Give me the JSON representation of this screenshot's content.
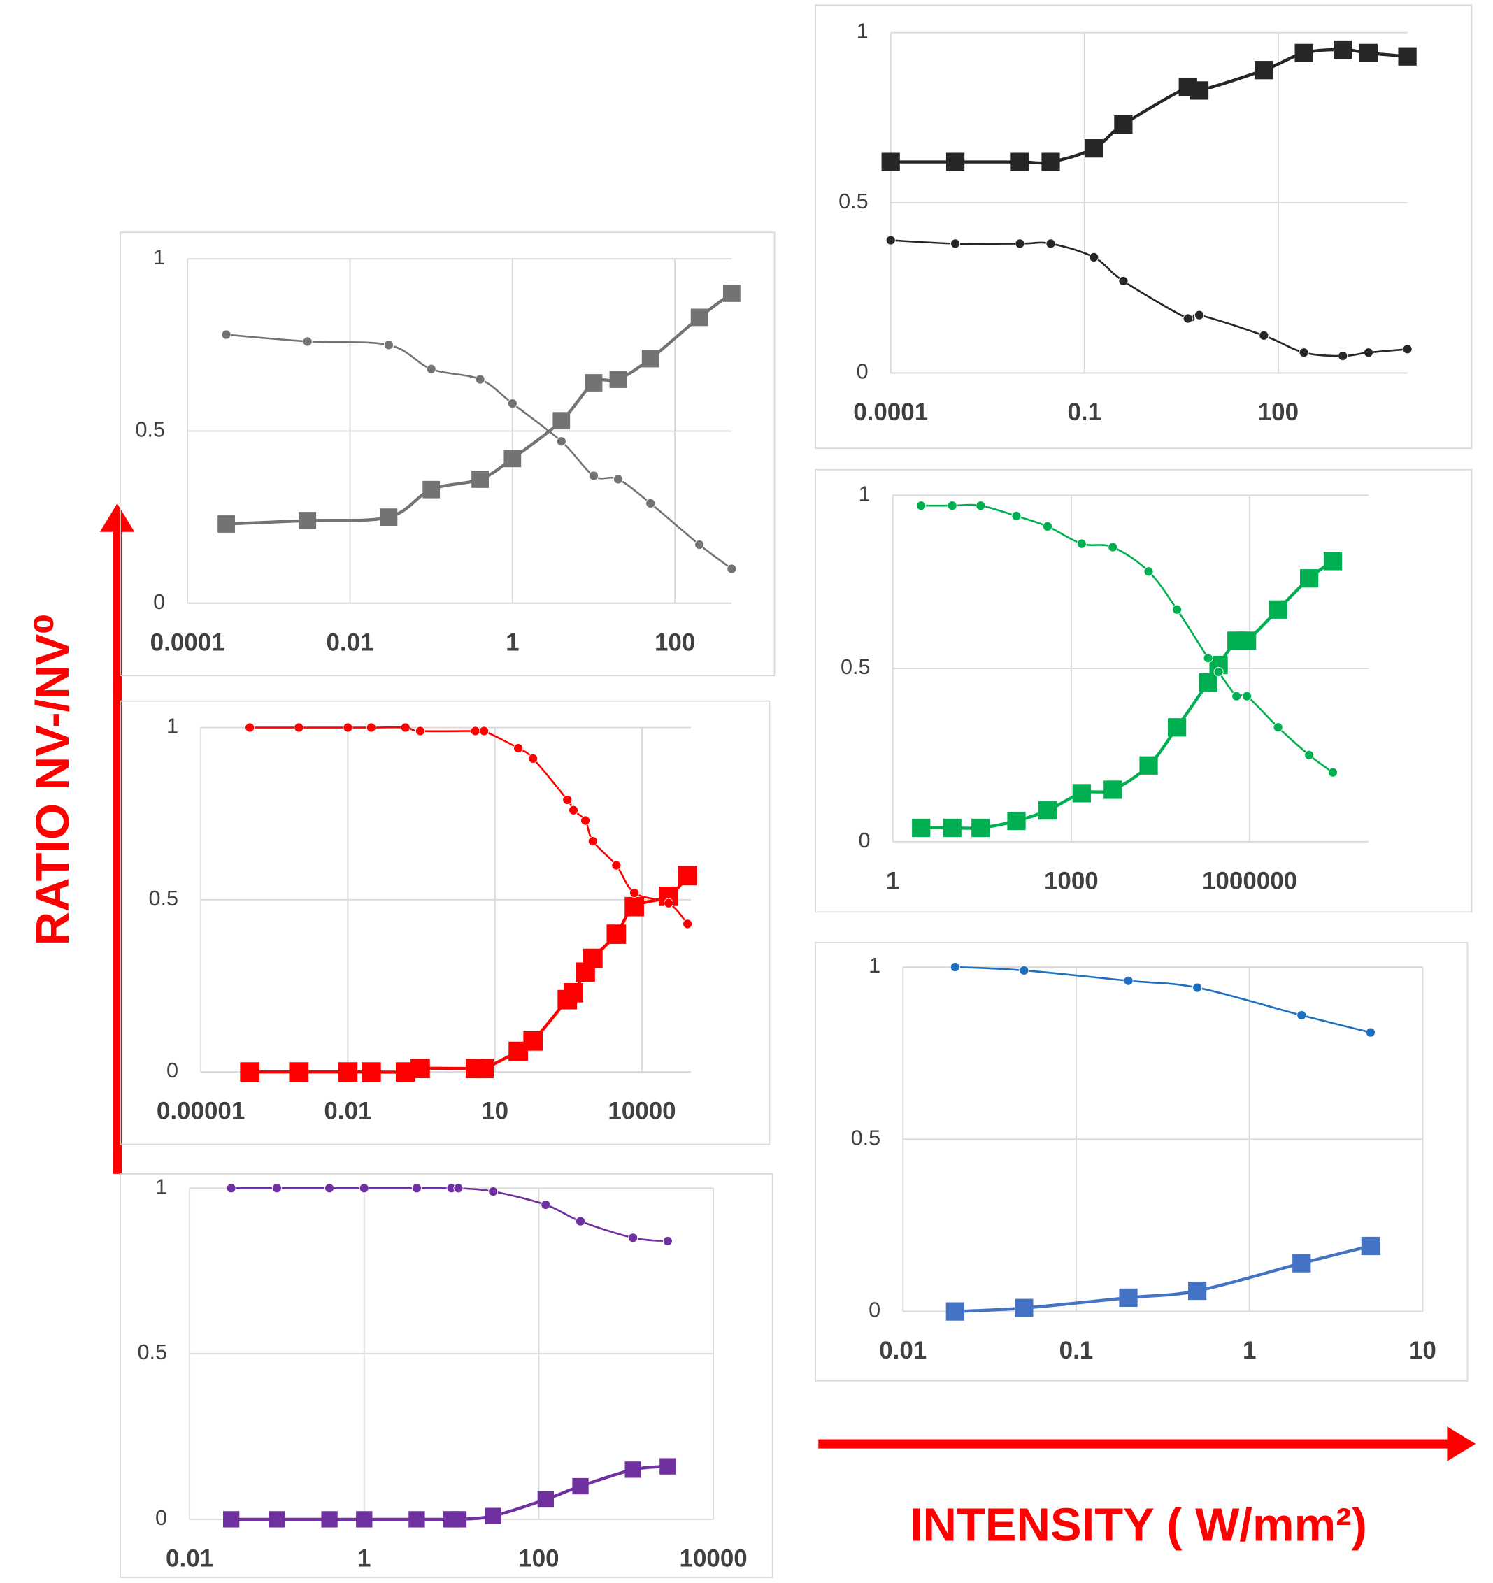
{
  "chart_data": [
    {
      "type": "line",
      "xlog": true,
      "grid": true,
      "xlim": [
        0.0001,
        500
      ],
      "xticks": [
        0.0001,
        0.01,
        1,
        100
      ],
      "ylim": [
        0,
        1
      ],
      "yticks": [
        0,
        0.5,
        1
      ],
      "x": [
        0.0003,
        0.003,
        0.03,
        0.1,
        0.4,
        1,
        4,
        10,
        20,
        50,
        200,
        500
      ],
      "series": [
        {
          "color": "#737373",
          "marker": "square",
          "values": [
            0.23,
            0.24,
            0.25,
            0.33,
            0.36,
            0.42,
            0.53,
            0.64,
            0.65,
            0.71,
            0.83,
            0.9
          ]
        },
        {
          "color": "#737373",
          "marker": "circle",
          "values": [
            0.78,
            0.76,
            0.75,
            0.68,
            0.65,
            0.58,
            0.47,
            0.37,
            0.36,
            0.29,
            0.17,
            0.1
          ]
        }
      ]
    },
    {
      "type": "line",
      "xlog": true,
      "grid": true,
      "xlim": [
        1e-05,
        100000
      ],
      "xticks": [
        1e-05,
        0.01,
        10,
        10000
      ],
      "ylim": [
        0,
        1
      ],
      "yticks": [
        0,
        0.5,
        1
      ],
      "x": [
        0.0001,
        0.001,
        0.01,
        0.03,
        0.15,
        0.3,
        4,
        6,
        30,
        60,
        300,
        400,
        700,
        1000,
        3000,
        7000,
        35000,
        85000
      ],
      "series": [
        {
          "color": "#ff0000",
          "marker": "square",
          "values": [
            0,
            0,
            0,
            0,
            0,
            0.01,
            0.01,
            0.01,
            0.06,
            0.09,
            0.21,
            0.23,
            0.29,
            0.33,
            0.4,
            0.48,
            0.51,
            0.57
          ]
        },
        {
          "color": "#ff0000",
          "marker": "circle",
          "values": [
            1,
            1,
            1,
            1,
            1,
            0.99,
            0.99,
            0.99,
            0.94,
            0.91,
            0.79,
            0.76,
            0.73,
            0.67,
            0.6,
            0.52,
            0.49,
            0.43
          ]
        }
      ]
    },
    {
      "type": "line",
      "xlog": true,
      "grid": true,
      "xlim": [
        0.01,
        10000
      ],
      "xticks": [
        0.01,
        1,
        100,
        10000
      ],
      "ylim": [
        0,
        1
      ],
      "yticks": [
        0,
        0.5,
        1
      ],
      "x": [
        0.03,
        0.1,
        0.4,
        1,
        4,
        10,
        12,
        30,
        120,
        300,
        1200,
        3000
      ],
      "series": [
        {
          "color": "#7030a0",
          "marker": "square",
          "values": [
            0,
            0,
            0,
            0,
            0,
            0,
            0,
            0.01,
            0.06,
            0.1,
            0.15,
            0.16
          ]
        },
        {
          "color": "#7030a0",
          "marker": "circle",
          "values": [
            1,
            1,
            1,
            1,
            1,
            1,
            1,
            0.99,
            0.95,
            0.9,
            0.85,
            0.84
          ]
        }
      ]
    },
    {
      "type": "line",
      "xlog": true,
      "grid": true,
      "xlim": [
        0.0001,
        10000
      ],
      "xticks": [
        0.0001,
        0.1,
        100
      ],
      "ylim": [
        0,
        1
      ],
      "yticks": [
        0,
        0.5,
        1
      ],
      "x": [
        0.0001,
        0.001,
        0.01,
        0.03,
        0.14,
        0.4,
        4,
        6,
        60,
        250,
        1000,
        2500,
        10000
      ],
      "series": [
        {
          "color": "#262626",
          "marker": "square",
          "values": [
            0.62,
            0.62,
            0.62,
            0.62,
            0.66,
            0.73,
            0.84,
            0.83,
            0.89,
            0.94,
            0.95,
            0.94,
            0.93
          ]
        },
        {
          "color": "#262626",
          "marker": "circle",
          "values": [
            0.39,
            0.38,
            0.38,
            0.38,
            0.34,
            0.27,
            0.16,
            0.17,
            0.11,
            0.06,
            0.05,
            0.06,
            0.07
          ]
        }
      ]
    },
    {
      "type": "line",
      "xlog": true,
      "grid": true,
      "xlim": [
        1,
        100000000
      ],
      "xticks": [
        1,
        1000,
        1000000
      ],
      "ylim": [
        0,
        1
      ],
      "yticks": [
        0,
        0.5,
        1
      ],
      "x": [
        3,
        10,
        30,
        120,
        400,
        1500,
        5000,
        20000,
        60000,
        200000,
        300000,
        600000,
        900000,
        3000000,
        10000000,
        25000000
      ],
      "series": [
        {
          "color": "#00b050",
          "marker": "square",
          "values": [
            0.04,
            0.04,
            0.04,
            0.06,
            0.09,
            0.14,
            0.15,
            0.22,
            0.33,
            0.46,
            0.51,
            0.58,
            0.58,
            0.67,
            0.76,
            0.81
          ]
        },
        {
          "color": "#00b050",
          "marker": "circle",
          "values": [
            0.97,
            0.97,
            0.97,
            0.94,
            0.91,
            0.86,
            0.85,
            0.78,
            0.67,
            0.53,
            0.49,
            0.42,
            0.42,
            0.33,
            0.25,
            0.2
          ]
        }
      ]
    },
    {
      "type": "line",
      "xlog": true,
      "grid": true,
      "xlim": [
        0.01,
        10
      ],
      "xticks": [
        0.01,
        0.1,
        1,
        10
      ],
      "ylim": [
        0,
        1
      ],
      "yticks": [
        0,
        0.5,
        1
      ],
      "x": [
        0.02,
        0.05,
        0.2,
        0.5,
        2,
        5
      ],
      "series": [
        {
          "color": "#4472c4",
          "marker": "square",
          "values": [
            0,
            0.01,
            0.04,
            0.06,
            0.14,
            0.19
          ]
        },
        {
          "color": "#1f6fc0",
          "marker": "circle",
          "values": [
            1,
            0.99,
            0.96,
            0.94,
            0.86,
            0.81
          ]
        }
      ]
    }
  ],
  "y_label": "RATIO NV-/NV⁰",
  "x_label": "INTENSITY ( W/mm²)"
}
